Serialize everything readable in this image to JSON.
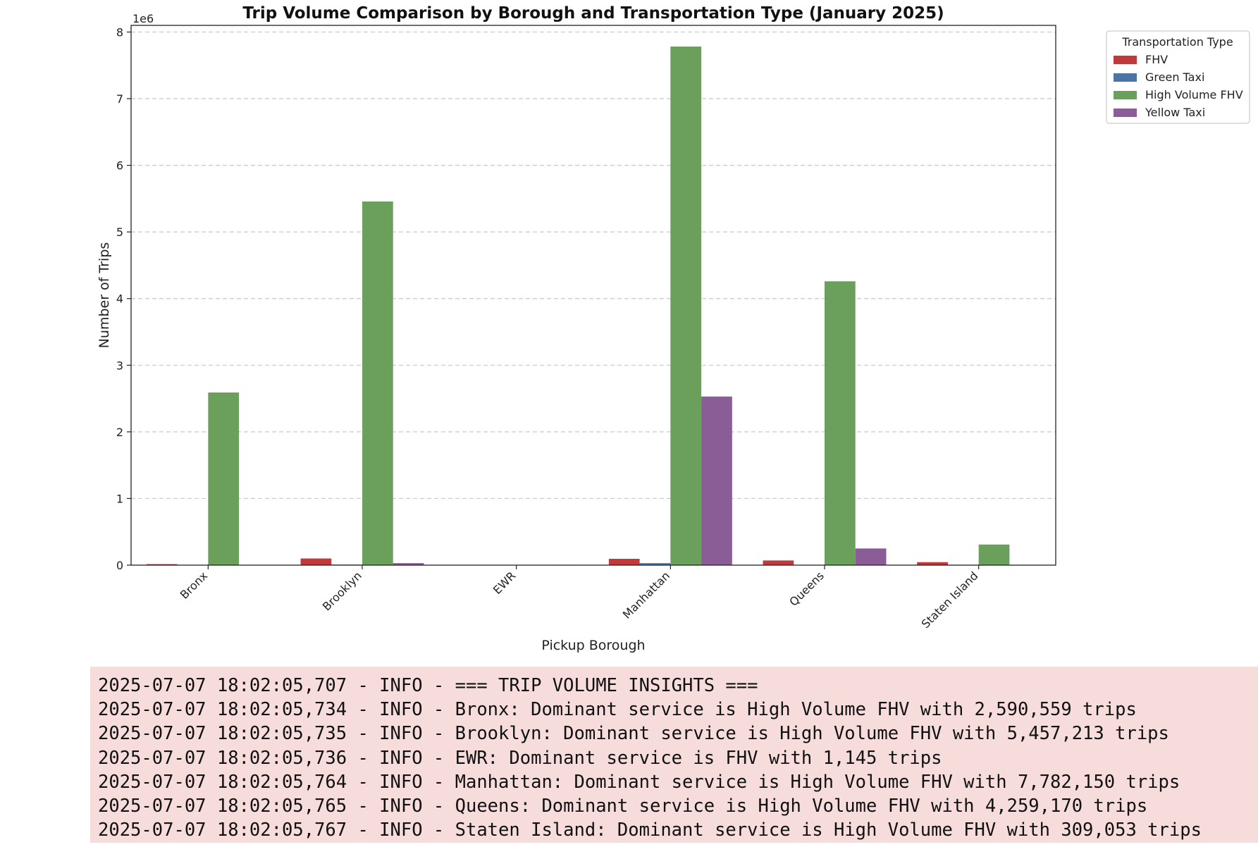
{
  "chart_data": {
    "type": "bar",
    "title": "Trip Volume Comparison by Borough and Transportation Type (January 2025)",
    "xlabel": "Pickup Borough",
    "ylabel": "Number of Trips",
    "y_offset_label": "1e6",
    "ylim": [
      0,
      8100000
    ],
    "yticks": [
      0,
      1,
      2,
      3,
      4,
      5,
      6,
      7,
      8
    ],
    "ytick_labels": [
      "0",
      "1",
      "2",
      "3",
      "4",
      "5",
      "6",
      "7",
      "8"
    ],
    "grid": "horizontal dashed",
    "legend_position": "upper right outside",
    "legend_title": "Transportation Type",
    "categories": [
      "Bronx",
      "Brooklyn",
      "EWR",
      "Manhattan",
      "Queens",
      "Staten Island"
    ],
    "series": [
      {
        "name": "FHV",
        "color": "#c0393b",
        "values": [
          15000,
          100000,
          1145,
          95000,
          70000,
          45000
        ]
      },
      {
        "name": "Green Taxi",
        "color": "#4b76a3",
        "values": [
          3000,
          8000,
          0,
          30000,
          5000,
          500
        ]
      },
      {
        "name": "High Volume FHV",
        "color": "#6aa05c",
        "values": [
          2590559,
          5457213,
          0,
          7782150,
          4259170,
          309053
        ]
      },
      {
        "name": "Yellow Taxi",
        "color": "#8a5d96",
        "values": [
          5000,
          30000,
          300,
          2530000,
          250000,
          300
        ]
      }
    ]
  },
  "log": {
    "lines": [
      "2025-07-07 18:02:05,707 - INFO - === TRIP VOLUME INSIGHTS ===",
      "2025-07-07 18:02:05,734 - INFO - Bronx: Dominant service is High Volume FHV with 2,590,559 trips",
      "2025-07-07 18:02:05,735 - INFO - Brooklyn: Dominant service is High Volume FHV with 5,457,213 trips",
      "2025-07-07 18:02:05,736 - INFO - EWR: Dominant service is FHV with 1,145 trips",
      "2025-07-07 18:02:05,764 - INFO - Manhattan: Dominant service is High Volume FHV with 7,782,150 trips",
      "2025-07-07 18:02:05,765 - INFO - Queens: Dominant service is High Volume FHV with 4,259,170 trips",
      "2025-07-07 18:02:05,767 - INFO - Staten Island: Dominant service is High Volume FHV with 309,053 trips"
    ]
  }
}
